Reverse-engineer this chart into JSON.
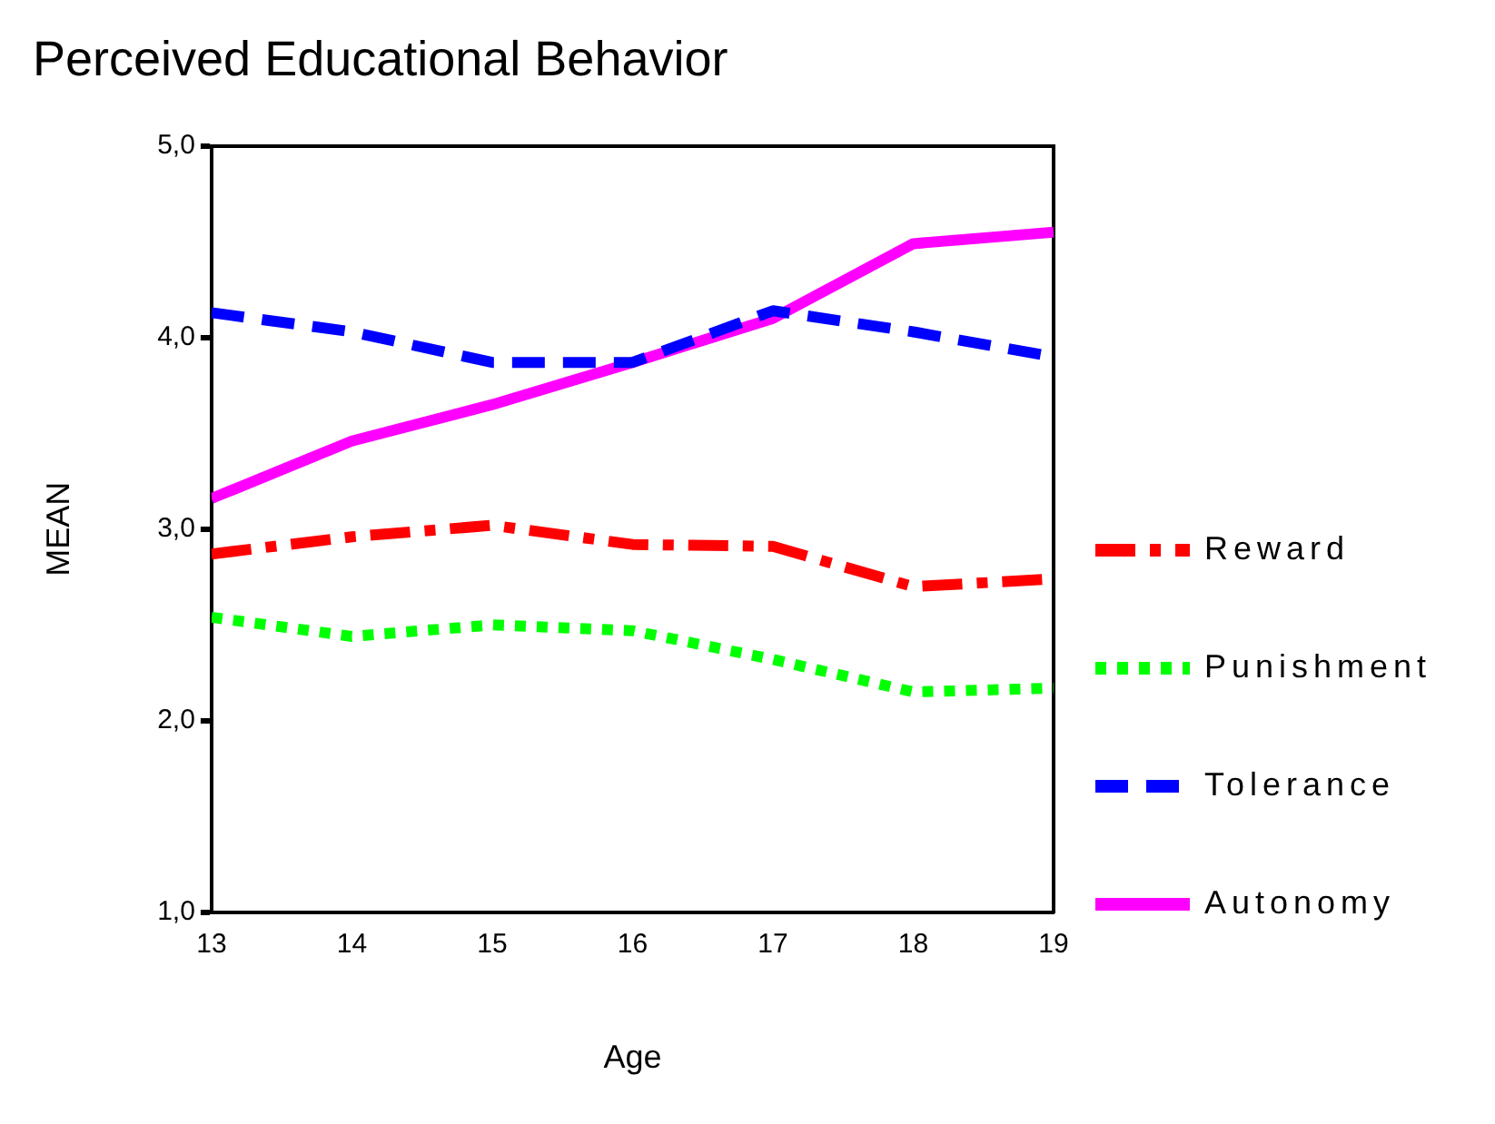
{
  "chart_data": {
    "type": "line",
    "title": "Perceived Educational Behavior",
    "xlabel": "Age",
    "ylabel": "MEAN",
    "x": [
      13,
      14,
      15,
      16,
      17,
      18,
      19
    ],
    "xlim": [
      13,
      19
    ],
    "xticks": [
      13,
      14,
      15,
      16,
      17,
      18,
      19
    ],
    "ylim": [
      1,
      5
    ],
    "yticks": [
      {
        "value": 1,
        "label": "1,0"
      },
      {
        "value": 2,
        "label": "2,0"
      },
      {
        "value": 3,
        "label": "3,0"
      },
      {
        "value": 4,
        "label": "4,0"
      },
      {
        "value": 5,
        "label": "5,0"
      }
    ],
    "grid": false,
    "legend": "right",
    "marker": "none",
    "series": [
      {
        "name": "Reward",
        "color": "#ff0000",
        "line_style": "dashdot",
        "values": [
          2.87,
          2.96,
          3.02,
          2.92,
          2.91,
          2.7,
          2.74
        ]
      },
      {
        "name": "Punishment",
        "color": "#00ff00",
        "line_style": "dotted",
        "values": [
          2.54,
          2.44,
          2.5,
          2.47,
          2.32,
          2.15,
          2.17
        ]
      },
      {
        "name": "Tolerance",
        "color": "#0000ff",
        "line_style": "dashed",
        "values": [
          4.13,
          4.03,
          3.87,
          3.87,
          4.14,
          4.03,
          3.9
        ]
      },
      {
        "name": "Autonomy",
        "color": "#ff00ff",
        "line_style": "solid",
        "values": [
          3.16,
          3.46,
          3.65,
          3.87,
          4.1,
          4.49,
          4.55
        ]
      }
    ]
  }
}
